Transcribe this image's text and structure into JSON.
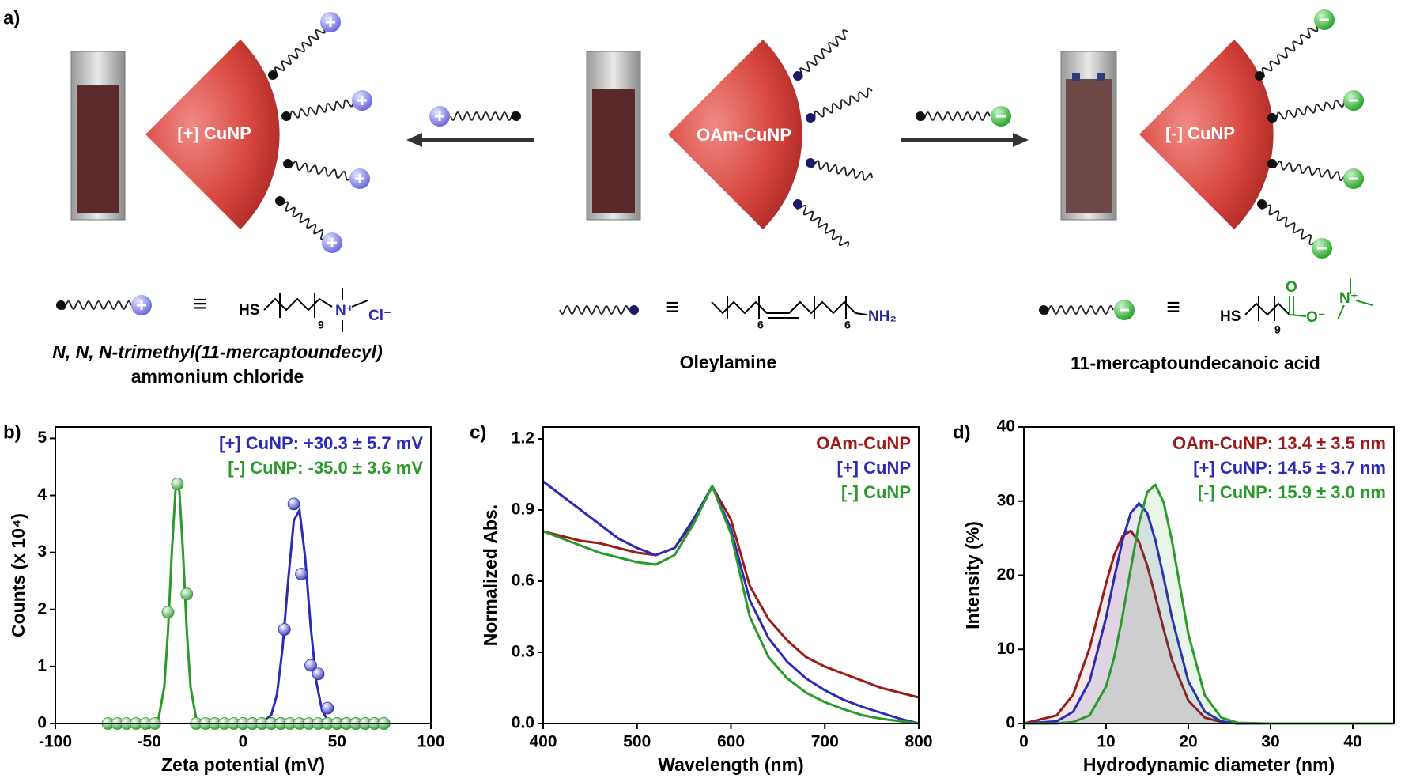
{
  "scheme": {
    "panel_label": "a)",
    "particles": [
      "[+] CuNP",
      "OAm-CuNP",
      "[-] CuNP"
    ],
    "equivalence": "≡",
    "ligands": [
      {
        "formula": [
          "HS",
          "9",
          "N⁺",
          "Cl⁻"
        ],
        "name": [
          "N, N, N-trimethyl(11-mercaptoundecyl)",
          "ammonium chloride"
        ]
      },
      {
        "formula": [
          "6",
          "6",
          "NH₂"
        ],
        "name": [
          "Oleylamine"
        ]
      },
      {
        "formula": [
          "HS",
          "9",
          "O",
          "O⁻",
          "N⁺"
        ],
        "name": [
          "11-mercaptoundecanoic acid"
        ]
      }
    ]
  },
  "chart_data": [
    {
      "type": "scatter",
      "panel_label": "b)",
      "xlabel": "Zeta potential (mV)",
      "ylabel": "Counts (x 10⁴)",
      "xlim": [
        -100,
        100
      ],
      "xticks": [
        -100,
        -50,
        0,
        50,
        100
      ],
      "ylim": [
        0,
        5.2
      ],
      "yticks": [
        0,
        1,
        2,
        3,
        4,
        5
      ],
      "series": [
        {
          "name": "[+] CuNP: +30.3 ± 5.7 mV",
          "color": "#2b2bb5",
          "points": {
            "x": [
              0,
              5,
              10,
              15,
              20,
              22,
              27,
              31,
              36,
              40,
              45,
              50,
              55,
              60,
              65,
              70,
              75
            ],
            "values": [
              0,
              0,
              0,
              0,
              0,
              1.65,
              3.85,
              2.62,
              1.02,
              0.87,
              0.27,
              0,
              0,
              0,
              0,
              0,
              0
            ]
          },
          "fit": {
            "x": [
              -5,
              10,
              15,
              18,
              21,
              24,
              27,
              30,
              33,
              36,
              39,
              42,
              45,
              50,
              60,
              75
            ],
            "values": [
              0,
              0.01,
              0.15,
              0.51,
              1.32,
              2.51,
              3.56,
              3.74,
              2.92,
              1.69,
              0.73,
              0.23,
              0.06,
              0,
              0,
              0
            ]
          }
        },
        {
          "name": "[-] CuNP: -35.0 ± 3.6 mV",
          "color": "#2a9a2a",
          "points": {
            "x": [
              -72,
              -67,
              -62,
              -57,
              -52,
              -47,
              -40,
              -35,
              -30,
              -25,
              -20,
              -15,
              -10,
              -5,
              0,
              5,
              10,
              15,
              20,
              25,
              30,
              35,
              40,
              45,
              50,
              55,
              60,
              65,
              70,
              75
            ],
            "values": [
              0,
              0,
              0,
              0,
              0,
              0,
              1.95,
              4.2,
              2.27,
              0,
              0,
              0,
              0,
              0,
              0,
              0,
              0,
              0,
              0,
              0,
              0,
              0,
              0,
              0,
              0,
              0,
              0,
              0,
              0,
              0
            ]
          },
          "fit": {
            "x": [
              -72,
              -50,
              -45,
              -42,
              -40,
              -38,
              -36,
              -35,
              -34,
              -32,
              -30,
              -28,
              -25,
              -20,
              0,
              75
            ],
            "values": [
              0,
              0,
              0.09,
              0.64,
              1.62,
              3.0,
              4.09,
              4.25,
              4.09,
              3.0,
              1.62,
              0.64,
              0.09,
              0,
              0,
              0
            ]
          }
        }
      ]
    },
    {
      "type": "line",
      "panel_label": "c)",
      "xlabel": "Wavelength (nm)",
      "ylabel": "Normalized Abs.",
      "xlim": [
        400,
        800
      ],
      "xticks": [
        400,
        500,
        600,
        700,
        800
      ],
      "ylim": [
        0,
        1.25
      ],
      "yticks": [
        {
          "value": 0,
          "label": "0.0"
        },
        0.3,
        0.6,
        0.9,
        1.2
      ],
      "x": [
        400,
        420,
        440,
        460,
        480,
        500,
        520,
        540,
        560,
        580,
        600,
        620,
        640,
        660,
        680,
        700,
        720,
        740,
        760,
        780,
        800
      ],
      "series": [
        {
          "name": "OAm-CuNP",
          "color": "#9b1b1b",
          "values": [
            0.81,
            0.79,
            0.77,
            0.76,
            0.74,
            0.72,
            0.71,
            0.74,
            0.85,
            1.0,
            0.86,
            0.58,
            0.44,
            0.35,
            0.28,
            0.24,
            0.21,
            0.18,
            0.15,
            0.13,
            0.11
          ]
        },
        {
          "name": "[+] CuNP",
          "color": "#2b2bb5",
          "values": [
            1.02,
            0.96,
            0.9,
            0.84,
            0.78,
            0.74,
            0.71,
            0.74,
            0.86,
            1.0,
            0.82,
            0.52,
            0.36,
            0.26,
            0.19,
            0.14,
            0.1,
            0.07,
            0.045,
            0.02,
            0.0
          ]
        },
        {
          "name": "[-] CuNP",
          "color": "#2a9a2a",
          "values": [
            0.81,
            0.78,
            0.75,
            0.72,
            0.7,
            0.68,
            0.67,
            0.71,
            0.84,
            1.0,
            0.8,
            0.45,
            0.28,
            0.19,
            0.13,
            0.09,
            0.06,
            0.035,
            0.02,
            0.01,
            0.0
          ]
        }
      ]
    },
    {
      "type": "area",
      "panel_label": "d)",
      "xlabel": "Hydrodynamic diameter (nm)",
      "ylabel": "Intensity (%)",
      "xlim": [
        0,
        45
      ],
      "xticks": [
        0,
        10,
        20,
        30,
        40
      ],
      "ylim": [
        0,
        40
      ],
      "yticks": [
        0,
        10,
        20,
        30,
        40
      ],
      "x": [
        0,
        4,
        6,
        8,
        10,
        11,
        12,
        13,
        14,
        15,
        16,
        17,
        18,
        20,
        22,
        24,
        26,
        30,
        45
      ],
      "series": [
        {
          "name": "OAm-CuNP: 13.4 ± 3.5 nm",
          "color": "#9b1b1b",
          "values": [
            0,
            1.1,
            3.9,
            10.2,
            18.9,
            22.8,
            25.3,
            26.0,
            24.5,
            21.3,
            17.1,
            12.7,
            8.6,
            3.1,
            0.8,
            0.2,
            0,
            0,
            0
          ]
        },
        {
          "name": "[+] CuNP: 14.5 ± 3.7 nm",
          "color": "#2b2bb5",
          "values": [
            0,
            0.3,
            1.6,
            5.7,
            14.3,
            19.7,
            24.7,
            28.4,
            29.7,
            28.4,
            24.7,
            19.7,
            14.3,
            5.7,
            1.6,
            0.3,
            0,
            0,
            0
          ]
        },
        {
          "name": "[-] CuNP: 15.9 ± 3.0 nm",
          "color": "#2a9a2a",
          "values": [
            0,
            0,
            0.2,
            1.1,
            5.0,
            9.0,
            14.5,
            20.9,
            27.0,
            31.2,
            32.2,
            29.8,
            24.7,
            12.1,
            3.8,
            0.8,
            0.1,
            0,
            0
          ]
        }
      ]
    }
  ]
}
